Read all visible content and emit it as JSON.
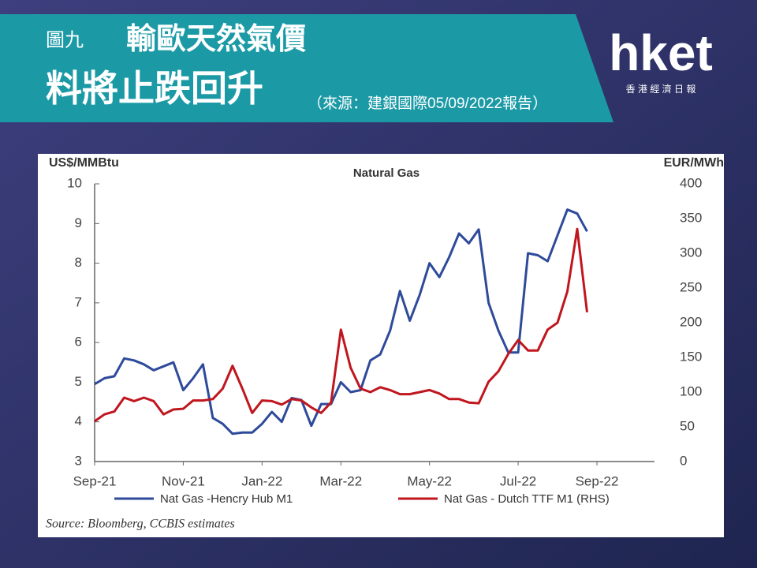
{
  "slide": {
    "label": "圖九",
    "title_line1": "輸歐天然氣價",
    "title_line2": "料將止跌回升",
    "source_note": "（來源：建銀國際05/09/2022報告）",
    "logo": "hket",
    "logo_sub": "香 港 經 濟 日 報"
  },
  "chart_data": {
    "type": "line",
    "title": "Natural Gas",
    "y_label": "US$/MMBtu",
    "y2_label": "EUR/MWh",
    "source": "Source: Bloomberg, CCBIS estimates",
    "categories": [
      "Sep-21",
      null,
      null,
      null,
      null,
      null,
      null,
      null,
      null,
      "Nov-21",
      null,
      null,
      null,
      null,
      null,
      null,
      null,
      "Jan-22",
      null,
      null,
      null,
      null,
      null,
      null,
      null,
      "Mar-22",
      null,
      null,
      null,
      null,
      null,
      null,
      null,
      null,
      "May-22",
      null,
      null,
      null,
      null,
      null,
      null,
      null,
      null,
      "Jul-22",
      null,
      null,
      null,
      null,
      null,
      null,
      null,
      "Sep-22"
    ],
    "series": [
      {
        "name": "Nat Gas -Hencry Hub M1",
        "color": "#2e4a9a",
        "values": [
          4.95,
          5.1,
          5.15,
          5.6,
          5.55,
          5.45,
          5.3,
          5.4,
          5.5,
          4.8,
          5.1,
          5.45,
          4.1,
          3.95,
          3.7,
          3.73,
          3.73,
          3.95,
          4.25,
          4.0,
          4.6,
          4.55,
          3.9,
          4.45,
          4.45,
          5.0,
          4.75,
          4.8,
          5.55,
          5.7,
          6.3,
          7.3,
          6.55,
          7.2,
          8.0,
          7.65,
          8.15,
          8.75,
          8.5,
          8.85,
          7.0,
          6.3,
          5.75,
          5.75,
          8.25,
          8.2,
          8.05,
          8.7,
          9.35,
          9.25,
          8.8,
          null
        ]
      },
      {
        "name": "Nat Gas - Dutch TTF M1 (RHS)",
        "color": "#c0161e",
        "axis": "y2",
        "values": [
          58,
          68,
          72,
          92,
          87,
          92,
          87,
          68,
          75,
          76,
          88,
          88,
          90,
          105,
          138,
          105,
          70,
          88,
          87,
          82,
          90,
          88,
          78,
          70,
          85,
          190,
          135,
          105,
          100,
          107,
          103,
          97,
          97,
          100,
          103,
          98,
          90,
          90,
          85,
          84,
          115,
          130,
          155,
          175,
          160,
          160,
          190,
          200,
          245,
          335,
          215,
          null
        ]
      }
    ],
    "ylim": [
      3,
      10
    ],
    "yticks": [
      3,
      4,
      5,
      6,
      7,
      8,
      9,
      10
    ],
    "y2lim": [
      0,
      400
    ],
    "y2ticks": [
      0,
      50,
      100,
      150,
      200,
      250,
      300,
      350,
      400
    ]
  }
}
